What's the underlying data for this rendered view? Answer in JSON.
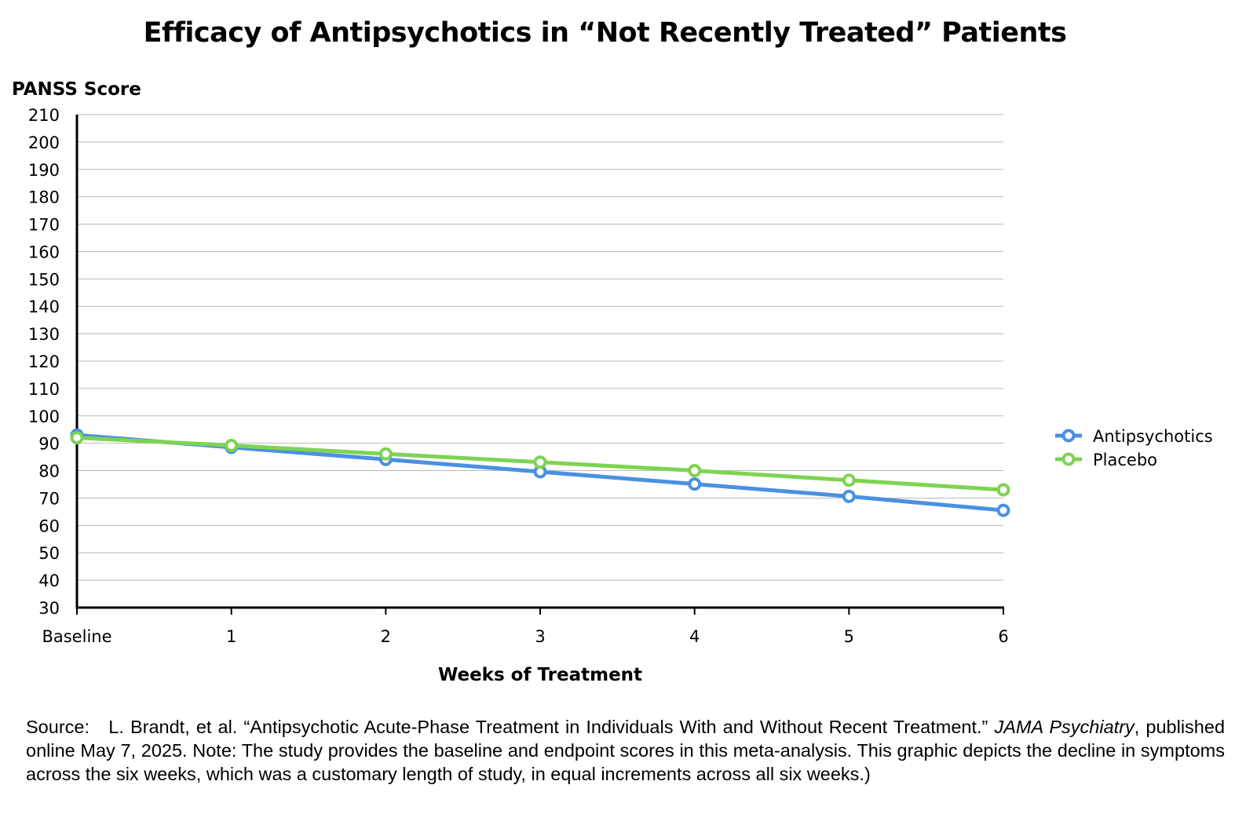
{
  "chart_data": {
    "type": "line",
    "title": "Efficacy of Antipsychotics in “Not Recently Treated” Patients",
    "xlabel": "Weeks of Treatment",
    "ylabel": "PANSS Score",
    "categories": [
      "Baseline",
      "1",
      "2",
      "3",
      "4",
      "5",
      "6"
    ],
    "ylim": [
      30,
      210
    ],
    "yticks": [
      30,
      40,
      50,
      60,
      70,
      80,
      90,
      100,
      110,
      120,
      130,
      140,
      150,
      160,
      170,
      180,
      190,
      200,
      210
    ],
    "grid": true,
    "legend_position": "right",
    "series": [
      {
        "name": "Antipsychotics",
        "color": "#4A90E2",
        "values": [
          93.0,
          88.5,
          84.1,
          79.6,
          75.1,
          70.6,
          65.5
        ]
      },
      {
        "name": "Placebo",
        "color": "#7ED352",
        "values": [
          92.0,
          89.2,
          86.1,
          83.1,
          80.0,
          76.5,
          73.0
        ]
      }
    ]
  },
  "source": {
    "label": "Source:",
    "authors": "L. Brandt, et al. “Antipsychotic Acute-Phase Treatment in Individuals With and Without Recent Treatment.”",
    "journal": "JAMA Psychiatry",
    "rest": ", published online May 7, 2025. Note: The study provides the baseline and endpoint scores in this meta-analysis. This graphic depicts the decline in symptoms across the six weeks, which was a customary length of study, in equal increments across all six weeks.)"
  }
}
